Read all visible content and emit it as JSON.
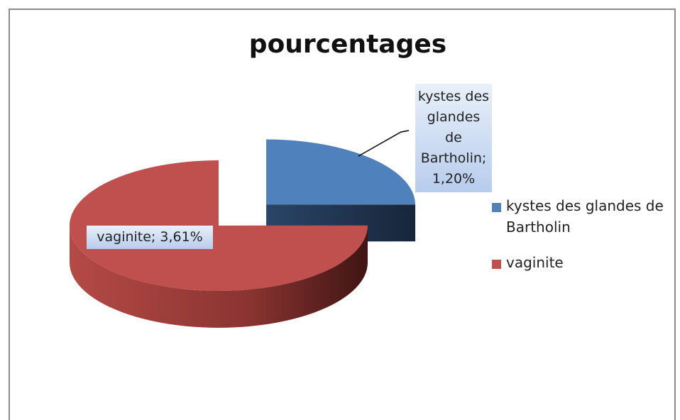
{
  "chart_data": {
    "type": "pie",
    "title": "pourcentages",
    "categories": [
      "kystes des glandes de Bartholin",
      "vaginite"
    ],
    "values": [
      1.2,
      3.61
    ],
    "value_labels": [
      "kystes des glandes de Bartholin; 1,20%",
      "vaginite; 3,61%"
    ],
    "colors": [
      "#4f81bd",
      "#c0504d"
    ],
    "legend": "right"
  }
}
